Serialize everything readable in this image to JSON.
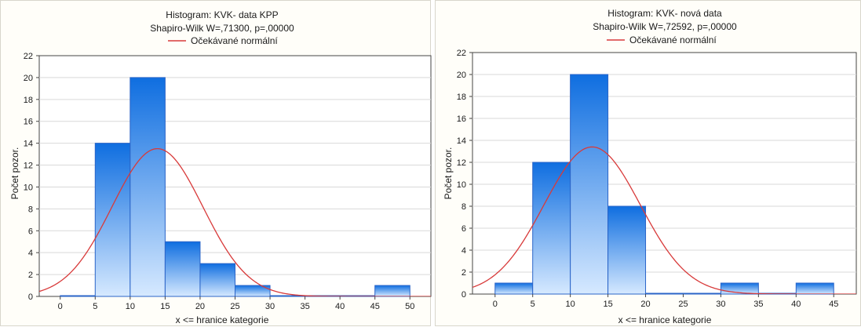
{
  "chart_data": [
    {
      "type": "bar",
      "title": "Histogram: KVK- data KPP",
      "subtitle": "Shapiro-Wilk W=,71300, p=,00000",
      "legend": "Očekávané normální",
      "xlabel": "x <= hranice kategorie",
      "ylabel": "Počet pozor.",
      "x_ticks": [
        "0",
        "5",
        "10",
        "15",
        "20",
        "25",
        "30",
        "35",
        "40",
        "45",
        "50"
      ],
      "y_ticks": [
        "0",
        "2",
        "4",
        "6",
        "8",
        "10",
        "12",
        "14",
        "16",
        "18",
        "20",
        "22"
      ],
      "xlim": [
        -3,
        53
      ],
      "ylim": [
        0,
        22
      ],
      "bins": [
        {
          "from": 0,
          "to": 5,
          "count": 0
        },
        {
          "from": 5,
          "to": 10,
          "count": 14
        },
        {
          "from": 10,
          "to": 15,
          "count": 20
        },
        {
          "from": 15,
          "to": 20,
          "count": 5
        },
        {
          "from": 20,
          "to": 25,
          "count": 3
        },
        {
          "from": 25,
          "to": 30,
          "count": 1
        },
        {
          "from": 30,
          "to": 35,
          "count": 0
        },
        {
          "from": 35,
          "to": 40,
          "count": 0
        },
        {
          "from": 40,
          "to": 45,
          "count": 0
        },
        {
          "from": 45,
          "to": 50,
          "count": 1
        }
      ],
      "normal_curve": {
        "mean": 13.9,
        "sd": 6.5,
        "n": 44,
        "bin_width": 5
      },
      "colors": {
        "bar_top": "#0f6ee0",
        "bar_bottom": "#d6e9ff",
        "bar_edge": "#2a64c8",
        "curve": "#d83a3a"
      }
    },
    {
      "type": "bar",
      "title": "Histogram: KVK- nová data",
      "subtitle": "Shapiro-Wilk W=,72592, p=,00000",
      "legend": "Očekávané normální",
      "xlabel": "x <= hranice kategorie",
      "ylabel": "Počet pozor.",
      "x_ticks": [
        "0",
        "5",
        "10",
        "15",
        "20",
        "25",
        "30",
        "35",
        "40",
        "45"
      ],
      "y_ticks": [
        "0",
        "2",
        "4",
        "6",
        "8",
        "10",
        "12",
        "14",
        "16",
        "18",
        "20",
        "22"
      ],
      "xlim": [
        -3,
        48
      ],
      "ylim": [
        0,
        22
      ],
      "bins": [
        {
          "from": 0,
          "to": 5,
          "count": 1
        },
        {
          "from": 5,
          "to": 10,
          "count": 12
        },
        {
          "from": 10,
          "to": 15,
          "count": 20
        },
        {
          "from": 15,
          "to": 20,
          "count": 8
        },
        {
          "from": 20,
          "to": 25,
          "count": 0
        },
        {
          "from": 25,
          "to": 30,
          "count": 0
        },
        {
          "from": 30,
          "to": 35,
          "count": 1
        },
        {
          "from": 35,
          "to": 40,
          "count": 0
        },
        {
          "from": 40,
          "to": 45,
          "count": 1
        }
      ],
      "normal_curve": {
        "mean": 12.9,
        "sd": 6.4,
        "n": 43,
        "bin_width": 5
      },
      "colors": {
        "bar_top": "#0f6ee0",
        "bar_bottom": "#d6e9ff",
        "bar_edge": "#2a64c8",
        "curve": "#d83a3a"
      }
    }
  ]
}
